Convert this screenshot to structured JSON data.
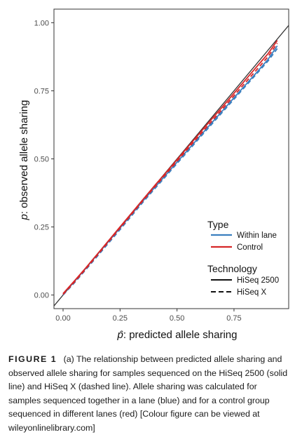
{
  "chart_data": {
    "type": "line",
    "xlabel_symbol": "p̂",
    "xlabel_text": ": predicted allele sharing",
    "ylabel_symbol": "p",
    "ylabel_text": ": observed allele sharing",
    "xlim": [
      -0.04,
      0.99
    ],
    "ylim": [
      -0.05,
      1.05
    ],
    "x_ticks": [
      "0.00",
      "0.25",
      "0.50",
      "0.75"
    ],
    "x_tick_values": [
      0,
      0.25,
      0.5,
      0.75
    ],
    "y_ticks": [
      "0.00",
      "0.25",
      "0.50",
      "0.75",
      "1.00"
    ],
    "y_tick_values": [
      0,
      0.25,
      0.5,
      0.75,
      1.0
    ],
    "grid": false,
    "reference_line": {
      "from": [
        -0.05,
        -0.05
      ],
      "to": [
        1.0,
        1.0
      ],
      "color": "#333333"
    },
    "legend": {
      "placement": "bottom-right",
      "type_title": "Type",
      "type_entries": [
        {
          "label": "Within lane",
          "color": "#3b7fbf"
        },
        {
          "label": "Control",
          "color": "#d62728"
        }
      ],
      "technology_title": "Technology",
      "technology_entries": [
        {
          "label": "HiSeq 2500",
          "dash": "solid"
        },
        {
          "label": "HiSeq X",
          "dash": "dashed"
        }
      ]
    },
    "series": [
      {
        "type": "Within lane",
        "technology": "HiSeq 2500",
        "color": "#3b7fbf",
        "dash": "solid",
        "x": [
          0.0,
          0.05,
          0.1,
          0.15,
          0.2,
          0.25,
          0.3,
          0.35,
          0.4,
          0.45,
          0.5,
          0.55,
          0.6,
          0.65,
          0.7,
          0.75,
          0.8,
          0.85,
          0.9,
          0.94
        ],
        "y": [
          0.005,
          0.05,
          0.098,
          0.148,
          0.197,
          0.246,
          0.296,
          0.345,
          0.393,
          0.44,
          0.488,
          0.535,
          0.583,
          0.63,
          0.677,
          0.724,
          0.771,
          0.818,
          0.866,
          0.915
        ]
      },
      {
        "type": "Within lane",
        "technology": "HiSeq X",
        "color": "#3b7fbf",
        "dash": "dashed",
        "x": [
          0.0,
          0.05,
          0.1,
          0.15,
          0.2,
          0.25,
          0.3,
          0.35,
          0.4,
          0.45,
          0.5,
          0.55,
          0.6,
          0.65,
          0.7,
          0.75,
          0.8,
          0.85,
          0.9,
          0.94
        ],
        "y": [
          0.0,
          0.045,
          0.093,
          0.142,
          0.191,
          0.24,
          0.29,
          0.34,
          0.388,
          0.435,
          0.483,
          0.53,
          0.578,
          0.625,
          0.672,
          0.719,
          0.766,
          0.813,
          0.86,
          0.905
        ]
      },
      {
        "type": "Control",
        "technology": "HiSeq 2500",
        "color": "#d62728",
        "dash": "solid",
        "x": [
          0.0,
          0.05,
          0.1,
          0.15,
          0.2,
          0.25,
          0.3,
          0.35,
          0.4,
          0.45,
          0.5,
          0.55,
          0.6,
          0.65,
          0.7,
          0.75,
          0.8,
          0.85,
          0.9,
          0.94
        ],
        "y": [
          0.005,
          0.052,
          0.1,
          0.15,
          0.2,
          0.25,
          0.3,
          0.35,
          0.4,
          0.448,
          0.497,
          0.546,
          0.595,
          0.644,
          0.692,
          0.741,
          0.79,
          0.839,
          0.887,
          0.935
        ]
      },
      {
        "type": "Control",
        "technology": "HiSeq X",
        "color": "#d62728",
        "dash": "dashed",
        "x": [
          0.0,
          0.05,
          0.1,
          0.15,
          0.2,
          0.25,
          0.3,
          0.35,
          0.4,
          0.45,
          0.5,
          0.55,
          0.6,
          0.65,
          0.7,
          0.75,
          0.8,
          0.85,
          0.9,
          0.94
        ],
        "y": [
          0.002,
          0.048,
          0.096,
          0.146,
          0.196,
          0.246,
          0.296,
          0.346,
          0.395,
          0.443,
          0.491,
          0.54,
          0.588,
          0.636,
          0.684,
          0.732,
          0.78,
          0.828,
          0.876,
          0.925
        ]
      }
    ]
  },
  "caption": {
    "label": "FIGURE 1",
    "text": "(a) The relationship between predicted allele sharing and observed allele sharing for samples sequenced on the HiSeq 2500 (solid line) and HiSeq X (dashed line). Allele sharing was calculated for samples sequenced together in a lane (blue) and for a control group sequenced in different lanes (red)  [Colour figure can be viewed at wileyonlinelibrary.com]"
  }
}
